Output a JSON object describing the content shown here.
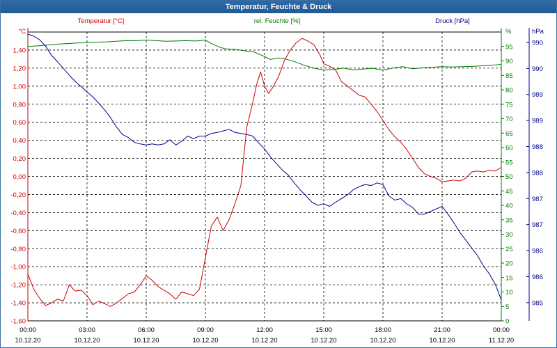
{
  "window": {
    "title": "Temperatur, Feuchte & Druck"
  },
  "colors": {
    "temperature": "#cc0000",
    "humidity": "#007a00",
    "pressure": "#00008b",
    "grid": "#000000"
  },
  "chart_data": {
    "type": "line",
    "title": "Temperatur, Feuchte & Druck",
    "grid": true,
    "x_ticks": [
      {
        "time": "00:00",
        "date": "10.12.20"
      },
      {
        "time": "03:00",
        "date": "10.12.20"
      },
      {
        "time": "06:00",
        "date": "10.12.20"
      },
      {
        "time": "09:00",
        "date": "10.12.20"
      },
      {
        "time": "12:00",
        "date": "10.12.20"
      },
      {
        "time": "15:00",
        "date": "10.12.20"
      },
      {
        "time": "18:00",
        "date": "10.12.20"
      },
      {
        "time": "21:00",
        "date": "10.12.20"
      },
      {
        "time": "00:00",
        "date": "11.12.20"
      }
    ],
    "xlim_hours": [
      0,
      24
    ],
    "axes": {
      "temperature": {
        "unit": "°C",
        "label": "Temperatur [°C]",
        "ylim": [
          -1.6,
          1.6
        ],
        "ticks": [
          "1,40",
          "1,20",
          "1,00",
          "0,80",
          "0,60",
          "0,40",
          "0,20",
          "0,00",
          "-0,20",
          "-0,40",
          "-0,60",
          "-0,80",
          "-1,00",
          "-1,20",
          "-1,40",
          "-1,60"
        ],
        "tick_values": [
          1.4,
          1.2,
          1.0,
          0.8,
          0.6,
          0.4,
          0.2,
          0.0,
          -0.2,
          -0.4,
          -0.6,
          -0.8,
          -1.0,
          -1.2,
          -1.4,
          -1.6
        ]
      },
      "humidity": {
        "unit": "%",
        "label": "rel. Feuchte [%]",
        "ylim": [
          0,
          100
        ],
        "ticks": [
          "95",
          "90",
          "85",
          "80",
          "75",
          "70",
          "65",
          "60",
          "55",
          "50",
          "45",
          "40",
          "35",
          "30",
          "25",
          "20",
          "15",
          "10",
          "5",
          "0"
        ],
        "tick_values": [
          95,
          90,
          85,
          80,
          75,
          70,
          65,
          60,
          55,
          50,
          45,
          40,
          35,
          30,
          25,
          20,
          15,
          10,
          5,
          0
        ]
      },
      "pressure": {
        "unit": "hPa",
        "label": "Druck [hPa]",
        "ticks": [
          "990",
          "990",
          "989",
          "989",
          "988",
          "988",
          "987",
          "987",
          "986",
          "986",
          "985"
        ],
        "tick_values": [
          990.25,
          989.75,
          989.25,
          988.75,
          988.25,
          987.75,
          987.25,
          986.75,
          986.25,
          985.75,
          985.25
        ],
        "ylim": [
          984.9,
          990.45
        ]
      }
    },
    "series": [
      {
        "name": "Temperatur [°C]",
        "axis": "temperature",
        "x": [
          0,
          0.3,
          0.6,
          0.9,
          1.2,
          1.5,
          1.8,
          2.1,
          2.4,
          2.7,
          3.0,
          3.3,
          3.6,
          3.9,
          4.2,
          4.5,
          4.8,
          5.1,
          5.4,
          5.7,
          6.0,
          6.3,
          6.6,
          6.9,
          7.2,
          7.5,
          7.8,
          8.1,
          8.4,
          8.7,
          9.0,
          9.3,
          9.6,
          9.9,
          10.2,
          10.5,
          10.8,
          11.1,
          11.4,
          11.6,
          11.8,
          12.0,
          12.2,
          12.4,
          12.7,
          13.0,
          13.3,
          13.6,
          13.9,
          14.2,
          14.5,
          14.8,
          15.0,
          15.3,
          15.6,
          15.9,
          16.2,
          16.5,
          16.8,
          17.1,
          17.4,
          17.7,
          18.0,
          18.3,
          18.6,
          18.9,
          19.2,
          19.5,
          19.8,
          20.1,
          20.4,
          20.7,
          21.0,
          21.3,
          21.6,
          21.9,
          22.2,
          22.5,
          22.8,
          23.1,
          23.4,
          23.7,
          24.0
        ],
        "values": [
          -1.08,
          -1.25,
          -1.35,
          -1.43,
          -1.4,
          -1.36,
          -1.38,
          -1.2,
          -1.27,
          -1.26,
          -1.32,
          -1.42,
          -1.38,
          -1.41,
          -1.44,
          -1.4,
          -1.35,
          -1.3,
          -1.28,
          -1.2,
          -1.1,
          -1.15,
          -1.22,
          -1.26,
          -1.3,
          -1.36,
          -1.28,
          -1.3,
          -1.32,
          -1.25,
          -0.9,
          -0.55,
          -0.45,
          -0.6,
          -0.48,
          -0.3,
          -0.1,
          0.55,
          0.82,
          1.02,
          1.16,
          1.0,
          0.92,
          0.98,
          1.1,
          1.28,
          1.4,
          1.48,
          1.53,
          1.5,
          1.46,
          1.35,
          1.25,
          1.22,
          1.18,
          1.05,
          1.0,
          0.95,
          0.9,
          0.88,
          0.8,
          0.72,
          0.62,
          0.52,
          0.44,
          0.38,
          0.3,
          0.2,
          0.1,
          0.03,
          0.0,
          -0.02,
          -0.06,
          -0.05,
          -0.04,
          -0.05,
          -0.02,
          0.05,
          0.06,
          0.05,
          0.07,
          0.06,
          0.1
        ]
      },
      {
        "name": "rel. Feuchte [%]",
        "axis": "humidity",
        "x": [
          0,
          0.5,
          1.0,
          1.5,
          2.0,
          2.5,
          3.0,
          3.5,
          4.0,
          4.5,
          5.0,
          5.5,
          6.0,
          6.5,
          7.0,
          7.5,
          8.0,
          8.5,
          9.0,
          9.3,
          9.7,
          10.0,
          10.5,
          11.0,
          11.5,
          12.0,
          12.3,
          12.7,
          13.0,
          13.5,
          14.0,
          14.5,
          15.0,
          15.5,
          16.0,
          16.5,
          17.0,
          17.5,
          18.0,
          18.5,
          19.0,
          19.5,
          20.0,
          20.5,
          21.0,
          21.5,
          22.0,
          22.5,
          23.0,
          23.5,
          24.0
        ],
        "values": [
          95.0,
          95.2,
          95.5,
          95.8,
          96.0,
          96.2,
          96.3,
          96.5,
          96.6,
          96.8,
          97.0,
          97.0,
          97.2,
          97.0,
          96.8,
          96.9,
          97.0,
          96.9,
          97.2,
          96.0,
          94.8,
          94.2,
          94.0,
          93.5,
          93.0,
          91.5,
          90.5,
          91.0,
          90.8,
          89.8,
          88.5,
          87.5,
          86.8,
          87.0,
          87.5,
          86.9,
          87.2,
          87.4,
          86.8,
          87.5,
          88.0,
          87.3,
          87.6,
          87.8,
          88.0,
          87.9,
          88.0,
          88.1,
          88.3,
          88.5,
          88.8
        ]
      },
      {
        "name": "Druck [hPa]",
        "axis": "pressure",
        "x": [
          0,
          0.3,
          0.6,
          0.9,
          1.2,
          1.5,
          1.8,
          2.1,
          2.4,
          2.7,
          3.0,
          3.3,
          3.6,
          3.9,
          4.2,
          4.5,
          4.8,
          5.1,
          5.4,
          5.7,
          6.0,
          6.3,
          6.6,
          6.9,
          7.2,
          7.5,
          7.8,
          8.1,
          8.4,
          8.7,
          9.0,
          9.3,
          9.6,
          9.9,
          10.2,
          10.5,
          10.8,
          11.1,
          11.4,
          11.7,
          12.0,
          12.3,
          12.6,
          12.9,
          13.2,
          13.5,
          13.8,
          14.1,
          14.4,
          14.7,
          15.0,
          15.3,
          15.6,
          15.9,
          16.2,
          16.5,
          16.8,
          17.1,
          17.4,
          17.7,
          18.0,
          18.3,
          18.6,
          18.9,
          19.2,
          19.5,
          19.8,
          20.1,
          20.4,
          20.7,
          21.0,
          21.3,
          21.6,
          21.9,
          22.2,
          22.5,
          22.8,
          23.1,
          23.4,
          23.7,
          24.0
        ],
        "values": [
          990.41,
          990.37,
          990.3,
          990.18,
          990.0,
          989.88,
          989.75,
          989.62,
          989.5,
          989.4,
          989.3,
          989.2,
          989.08,
          988.95,
          988.8,
          988.62,
          988.48,
          988.42,
          988.33,
          988.3,
          988.28,
          988.3,
          988.28,
          988.3,
          988.38,
          988.28,
          988.35,
          988.45,
          988.4,
          988.45,
          988.45,
          988.5,
          988.52,
          988.55,
          988.58,
          988.52,
          988.5,
          988.48,
          988.45,
          988.32,
          988.2,
          988.05,
          987.92,
          987.8,
          987.7,
          987.55,
          987.42,
          987.3,
          987.18,
          987.12,
          987.15,
          987.1,
          987.18,
          987.25,
          987.32,
          987.42,
          987.48,
          987.52,
          987.5,
          987.55,
          987.52,
          987.3,
          987.22,
          987.25,
          987.15,
          987.08,
          986.95,
          986.95,
          987.0,
          987.05,
          987.1,
          986.95,
          986.78,
          986.6,
          986.45,
          986.3,
          986.15,
          985.95,
          985.8,
          985.6,
          985.3
        ]
      }
    ]
  }
}
